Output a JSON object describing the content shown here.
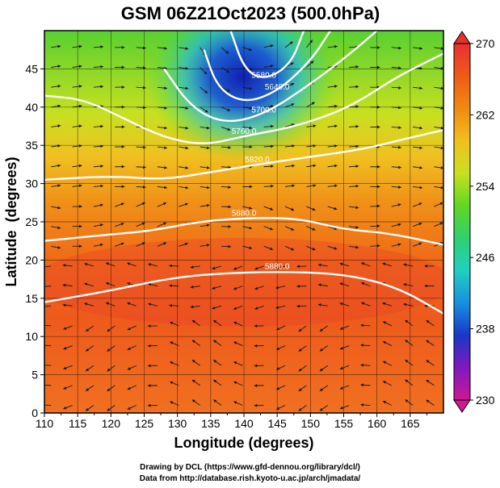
{
  "chart_data": {
    "type": "heatmap",
    "title": "GSM 06Z21Oct2023 (500.0hPa)",
    "xlabel": "Longitude (degrees)",
    "ylabel": "Latitude  (degrees)",
    "xlim": [
      110,
      170
    ],
    "ylim": [
      0,
      50
    ],
    "xticks": [
      "110",
      "115",
      "120",
      "125",
      "130",
      "135",
      "140",
      "145",
      "150",
      "155",
      "160",
      "165"
    ],
    "yticks": [
      "0",
      "5",
      "10",
      "15",
      "20",
      "25",
      "30",
      "35",
      "40",
      "45"
    ],
    "grid": true,
    "colorbar": {
      "range": [
        230,
        270
      ],
      "ticks": [
        "230",
        "238",
        "246",
        "254",
        "262",
        "270"
      ],
      "colors": [
        "#d01890",
        "#8018c0",
        "#1838c8",
        "#1890e0",
        "#20d0c0",
        "#30d070",
        "#60d820",
        "#c8e020",
        "#f0c020",
        "#f08a10",
        "#f05a18",
        "#e83030"
      ]
    },
    "contours": [
      {
        "label": "5880.0",
        "level": 5880,
        "points": [
          [
            110,
            14.5
          ],
          [
            120,
            16
          ],
          [
            128,
            17.5
          ],
          [
            135,
            18.2
          ],
          [
            145,
            18.5
          ],
          [
            155,
            18.2
          ],
          [
            163,
            16.5
          ],
          [
            170,
            13
          ]
        ]
      },
      {
        "label": "5880.0",
        "level": 5880,
        "points": [
          [
            110,
            22.5
          ],
          [
            118,
            23.2
          ],
          [
            126,
            23.8
          ],
          [
            133,
            25
          ],
          [
            140,
            25.5
          ],
          [
            148,
            25.5
          ],
          [
            155,
            24
          ],
          [
            162,
            23.5
          ],
          [
            170,
            22
          ]
        ]
      },
      {
        "label": "5820.0",
        "level": 5820,
        "points": [
          [
            110,
            30.5
          ],
          [
            120,
            31
          ],
          [
            128,
            30.5
          ],
          [
            135,
            31.5
          ],
          [
            142,
            32.5
          ],
          [
            150,
            33.5
          ],
          [
            158,
            34.5
          ],
          [
            165,
            36
          ],
          [
            170,
            37
          ]
        ]
      },
      {
        "label": "5760.0",
        "level": 5760,
        "points": [
          [
            110,
            41.5
          ],
          [
            116,
            41
          ],
          [
            122,
            38.5
          ],
          [
            128,
            36
          ],
          [
            134,
            35
          ],
          [
            140,
            36.2
          ],
          [
            148,
            37.5
          ],
          [
            156,
            40
          ],
          [
            163,
            44
          ],
          [
            170,
            47
          ]
        ]
      },
      {
        "label": "5700.0",
        "level": 5700,
        "points": [
          [
            128,
            45
          ],
          [
            132,
            40
          ],
          [
            137,
            37.8
          ],
          [
            143,
            39
          ],
          [
            150,
            43
          ],
          [
            156,
            47
          ],
          [
            160,
            50
          ]
        ]
      },
      {
        "label": "5640.0",
        "level": 5640,
        "points": [
          [
            134,
            47.5
          ],
          [
            136,
            42.5
          ],
          [
            140,
            40.5
          ],
          [
            145,
            42
          ],
          [
            150,
            46
          ],
          [
            153,
            50
          ]
        ]
      },
      {
        "label": "5580.0",
        "level": 5580,
        "points": [
          [
            138,
            50
          ],
          [
            140,
            45
          ],
          [
            143,
            43.5
          ],
          [
            147,
            45.5
          ],
          [
            149,
            50
          ]
        ]
      }
    ],
    "credits": [
      "Drawing by DCL (https://www.gfd-dennou.org/library/dcl/)",
      "Data from http://database.rish.kyoto-u.ac.jp/arch/jmadata/"
    ]
  }
}
